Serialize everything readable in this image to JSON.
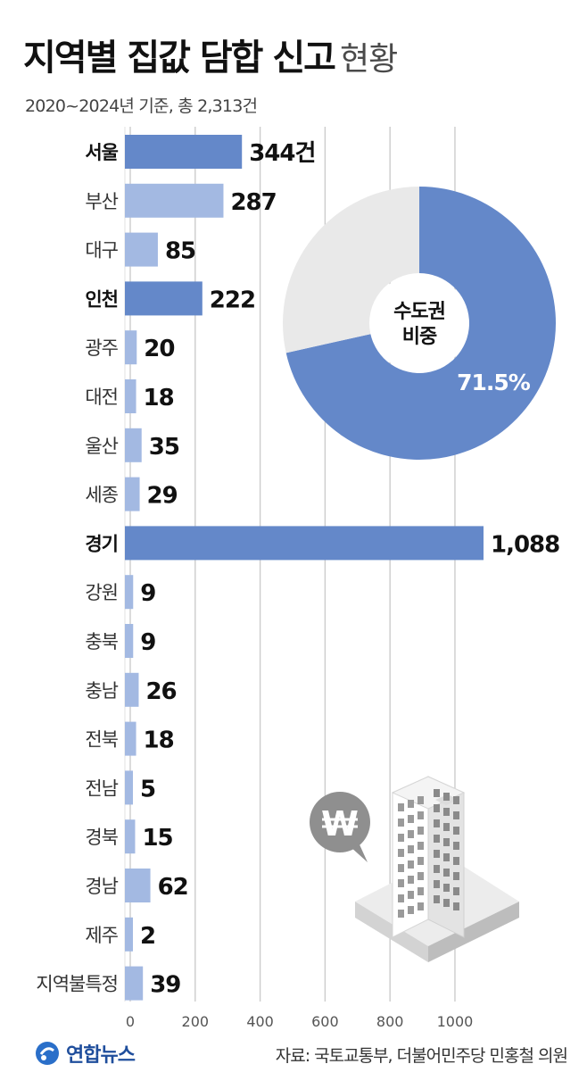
{
  "title": {
    "main": "지역별 집값 담합 신고",
    "suffix": "현황"
  },
  "subtitle": "2020~2024년 기준, 총 2,313건",
  "source": "자료: 국토교통부, 더불어민주당 민홍철 의원",
  "brand": "연합뉴스",
  "colors": {
    "highlight": "#6488c9",
    "normal": "#a3b9e2",
    "donut_main": "#6488c9",
    "donut_rest": "#e9e9e9",
    "grid": "#cccccc"
  },
  "chart_data": [
    {
      "type": "bar",
      "orientation": "horizontal",
      "categories": [
        "서울",
        "부산",
        "대구",
        "인천",
        "광주",
        "대전",
        "울산",
        "세종",
        "경기",
        "강원",
        "충북",
        "충남",
        "전북",
        "전남",
        "경북",
        "경남",
        "제주",
        "지역불특정"
      ],
      "values": [
        344,
        287,
        85,
        222,
        20,
        18,
        35,
        29,
        1088,
        9,
        9,
        26,
        18,
        5,
        15,
        62,
        2,
        39
      ],
      "value_labels": [
        "344건",
        "287",
        "85",
        "222",
        "20",
        "18",
        "35",
        "29",
        "1,088",
        "9",
        "9",
        "26",
        "18",
        "5",
        "15",
        "62",
        "2",
        "39"
      ],
      "highlighted": [
        "서울",
        "인천",
        "경기"
      ],
      "xlim": [
        0,
        1088
      ],
      "xticks": [
        0,
        200,
        400,
        600,
        800,
        1000
      ],
      "grid": true
    },
    {
      "type": "pie",
      "style": "donut",
      "center_label": [
        "수도권",
        "비중"
      ],
      "slices": [
        {
          "value": 71.5,
          "label": "71.5%"
        },
        {
          "value": 28.5
        }
      ]
    }
  ]
}
